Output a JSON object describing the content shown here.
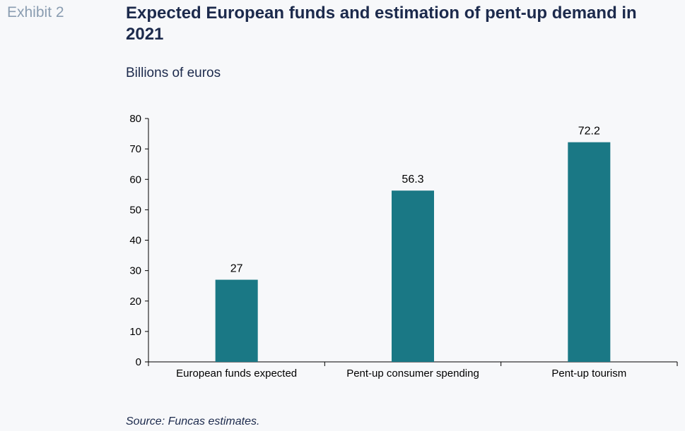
{
  "exhibit_label": "Exhibit 2",
  "title": "Expected European funds and estimation of pent-up demand in 2021",
  "units": "Billions of euros",
  "source": "Source: Funcas estimates.",
  "colors": {
    "bar": "#1a7885",
    "axis": "#000000",
    "title": "#1c2a4c",
    "exhibit": "#8a9db1"
  },
  "chart_data": {
    "type": "bar",
    "categories": [
      "European funds expected",
      "Pent-up consumer spending",
      "Pent-up tourism"
    ],
    "values": [
      27,
      56.3,
      72.2
    ],
    "value_labels": [
      "27",
      "56.3",
      "72.2"
    ],
    "ylim": [
      0,
      80
    ],
    "yticks": [
      0,
      10,
      20,
      30,
      40,
      50,
      60,
      70,
      80
    ],
    "grid": false,
    "legend": "none"
  }
}
